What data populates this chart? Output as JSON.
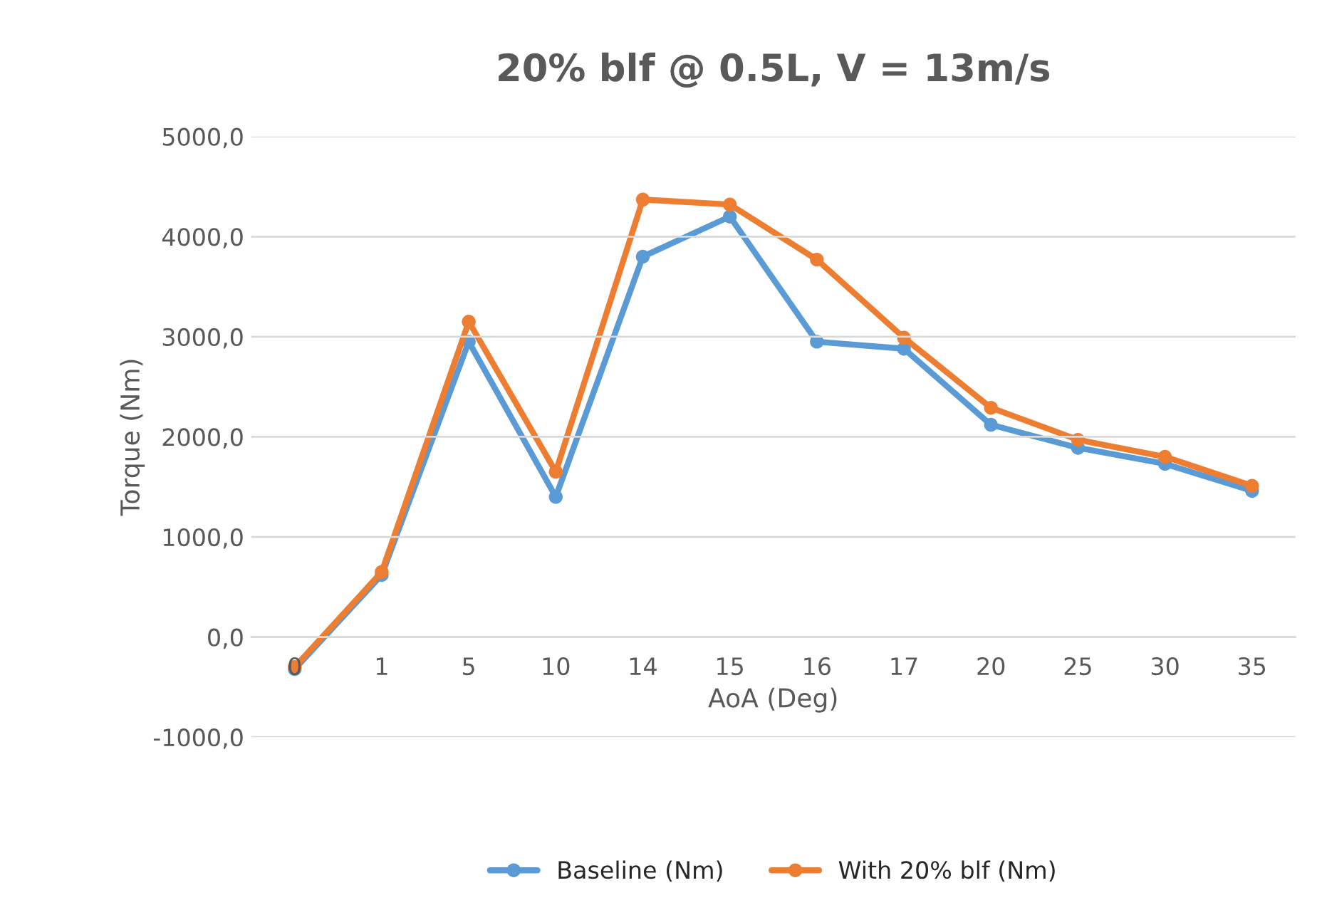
{
  "chart_data": {
    "type": "line",
    "title": "20% blf @ 0.5L, V = 13m/s",
    "xlabel": "AoA (Deg)",
    "ylabel": "Torque (Nm)",
    "categories": [
      "0",
      "1",
      "5",
      "10",
      "14",
      "15",
      "16",
      "17",
      "20",
      "25",
      "30",
      "35"
    ],
    "series": [
      {
        "name": "Baseline (Nm)",
        "color": "#5b9bd5",
        "values": [
          -320,
          620,
          2950,
          1400,
          3800,
          4200,
          2950,
          2880,
          2120,
          1890,
          1730,
          1460
        ]
      },
      {
        "name": "With 20% blf (Nm)",
        "color": "#ed7d31",
        "values": [
          -300,
          650,
          3150,
          1650,
          4370,
          4320,
          3770,
          2990,
          2290,
          1970,
          1800,
          1510
        ]
      }
    ],
    "ylim": [
      -1000,
      5000
    ],
    "yticks": [
      {
        "value": -1000,
        "label": "-1000,0"
      },
      {
        "value": 0,
        "label": "0,0"
      },
      {
        "value": 1000,
        "label": "1000,0"
      },
      {
        "value": 2000,
        "label": "2000,0"
      },
      {
        "value": 3000,
        "label": "3000,0"
      },
      {
        "value": 4000,
        "label": "4000,0"
      },
      {
        "value": 5000,
        "label": "5000,0"
      }
    ],
    "grid": "y",
    "legend": "bottom",
    "marker": "circle",
    "line_style": "solid"
  }
}
